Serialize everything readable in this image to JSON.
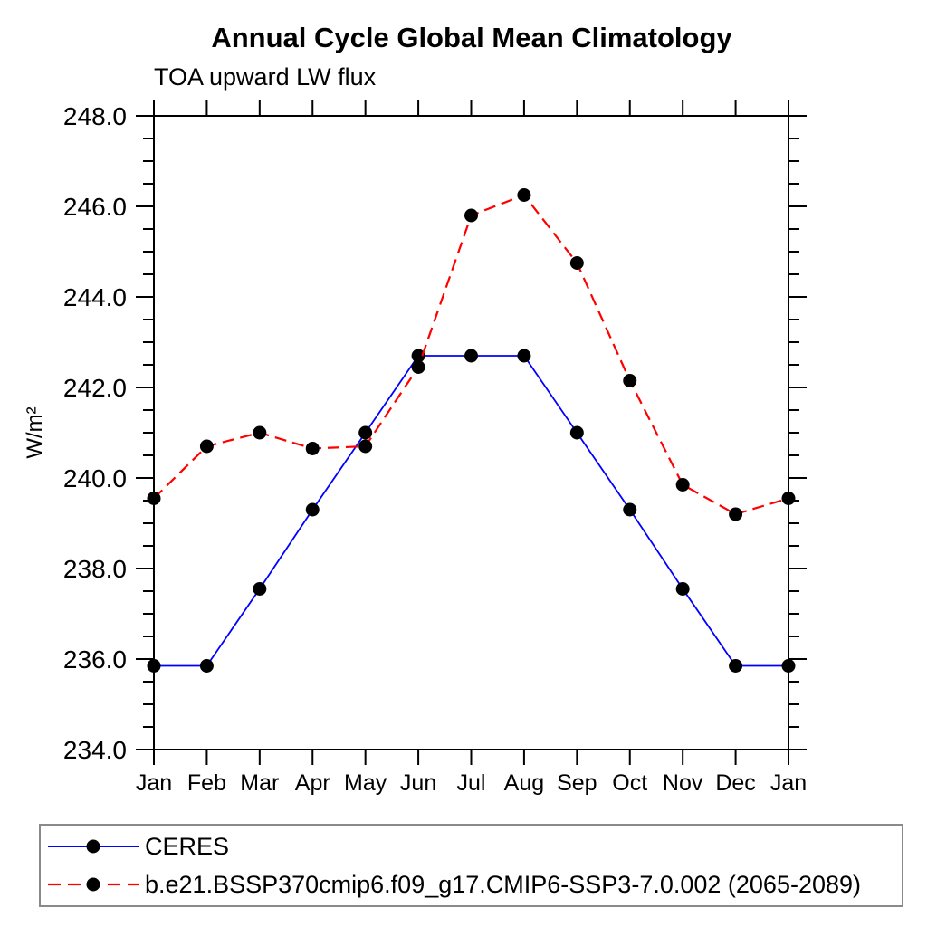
{
  "title": "Annual Cycle Global Mean Climatology",
  "subtitle": "TOA upward LW flux",
  "chart_data": {
    "type": "line",
    "title": "Annual Cycle Global Mean Climatology",
    "subtitle": "TOA upward LW flux",
    "ylabel": "W/m²",
    "ylim": [
      234.0,
      248.0
    ],
    "y_major_step": 2.0,
    "y_minor_step": 0.5,
    "y_tick_labels": [
      "234.0",
      "236.0",
      "238.0",
      "240.0",
      "242.0",
      "244.0",
      "246.0",
      "248.0"
    ],
    "x_tick_labels": [
      "Jan",
      "Feb",
      "Mar",
      "Apr",
      "May",
      "Jun",
      "Jul",
      "Aug",
      "Sep",
      "Oct",
      "Nov",
      "Dec",
      "Jan"
    ],
    "grid": false,
    "frame": true,
    "legend_position": "bottom-left",
    "axis_color": "#000000",
    "marker_color": "#000000",
    "series": [
      {
        "name": "CERES",
        "line_color": "#0000ff",
        "line_style": "solid",
        "marker": "filled-circle",
        "marker_color": "#000000",
        "values": [
          235.85,
          235.85,
          237.55,
          239.3,
          241.0,
          242.7,
          242.7,
          242.7,
          241.0,
          239.3,
          237.55,
          235.85,
          235.85
        ]
      },
      {
        "name": "b.e21.BSSP370cmip6.f09_g17.CMIP6-SSP3-7.0.002 (2065-2089)",
        "line_color": "#ff0000",
        "line_style": "dashed",
        "marker": "filled-circle",
        "marker_color": "#000000",
        "values": [
          239.55,
          240.7,
          241.0,
          240.65,
          240.7,
          242.45,
          245.8,
          246.25,
          244.75,
          242.15,
          239.85,
          239.2,
          239.55
        ]
      }
    ]
  }
}
